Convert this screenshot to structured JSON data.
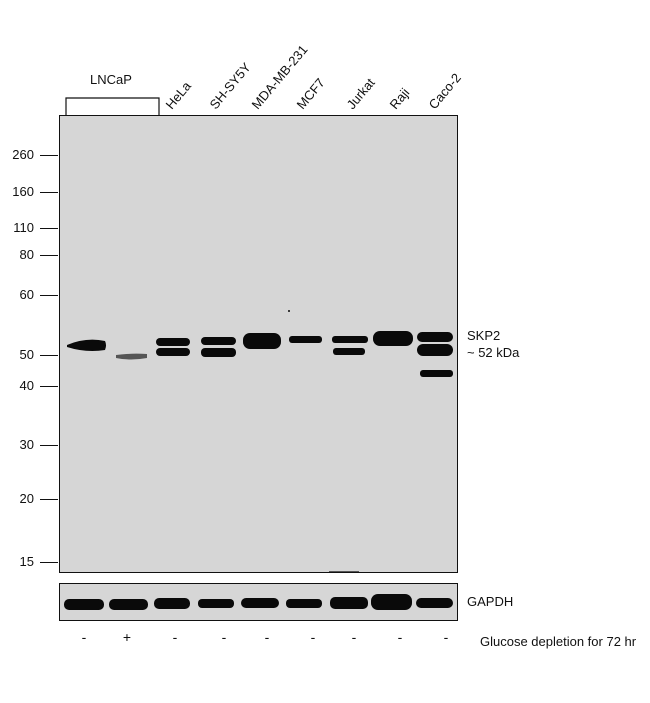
{
  "group_label": "LNCaP",
  "lanes": [
    "HeLa",
    "SH-SY5Y",
    "MDA-MB-231",
    "MCF7",
    "Jurkat",
    "Raji",
    "Caco-2"
  ],
  "mw_markers": [
    "260",
    "160",
    "110",
    "80",
    "60",
    "50",
    "40",
    "30",
    "20",
    "15"
  ],
  "target": {
    "name": "SKP2",
    "size": "~ 52 kDa"
  },
  "loading_control": "GAPDH",
  "treatment": {
    "signs": [
      "-",
      "+",
      "-",
      "-",
      "-",
      "-",
      "-",
      "-",
      "-"
    ],
    "label": "Glucose depletion for 72 hr"
  },
  "colors": {
    "membrane": "#d6d6d6",
    "band": "#0a0a0a"
  }
}
